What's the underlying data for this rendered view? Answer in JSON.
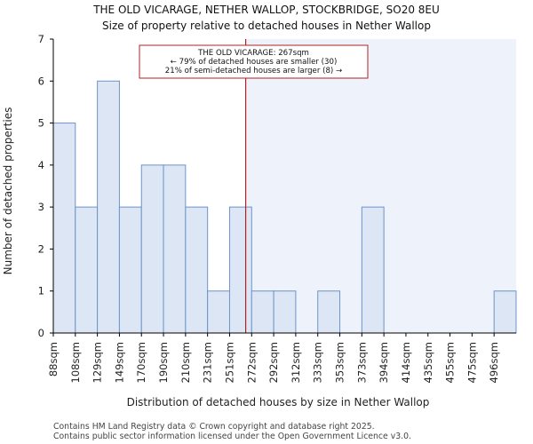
{
  "chart_data": {
    "type": "bar",
    "title": "THE OLD VICARAGE, NETHER WALLOP, STOCKBRIDGE, SO20 8EU",
    "subtitle": "Size of property relative to detached houses in Nether Wallop",
    "xlabel": "Distribution of detached houses by size in Nether Wallop",
    "ylabel": "Number of detached properties",
    "categories": [
      "88sqm",
      "108sqm",
      "129sqm",
      "149sqm",
      "170sqm",
      "190sqm",
      "210sqm",
      "231sqm",
      "251sqm",
      "272sqm",
      "292sqm",
      "312sqm",
      "333sqm",
      "353sqm",
      "373sqm",
      "394sqm",
      "414sqm",
      "435sqm",
      "455sqm",
      "475sqm",
      "496sqm"
    ],
    "values": [
      5,
      3,
      6,
      3,
      4,
      4,
      3,
      1,
      3,
      1,
      1,
      0,
      1,
      0,
      3,
      0,
      0,
      0,
      0,
      0,
      1
    ],
    "ylim": [
      0,
      7
    ],
    "yticks": [
      0,
      1,
      2,
      3,
      4,
      5,
      6,
      7
    ],
    "grid": false,
    "property_marker": {
      "value_sqm": 267,
      "position_bins": 8.73
    },
    "annotation": {
      "line1": "THE OLD VICARAGE: 267sqm",
      "line2": "← 79% of detached houses are smaller (30)",
      "line3": "21% of semi-detached houses are larger (8) →"
    },
    "colors": {
      "bar_fill": "#dce6f4",
      "bar_edge": "#6f93c9",
      "highlight_region": "#eef2fb",
      "marker_line": "#b22222",
      "axis": "#000000"
    }
  },
  "footer": {
    "line1": "Contains HM Land Registry data © Crown copyright and database right 2025.",
    "line2": "Contains public sector information licensed under the Open Government Licence v3.0."
  }
}
